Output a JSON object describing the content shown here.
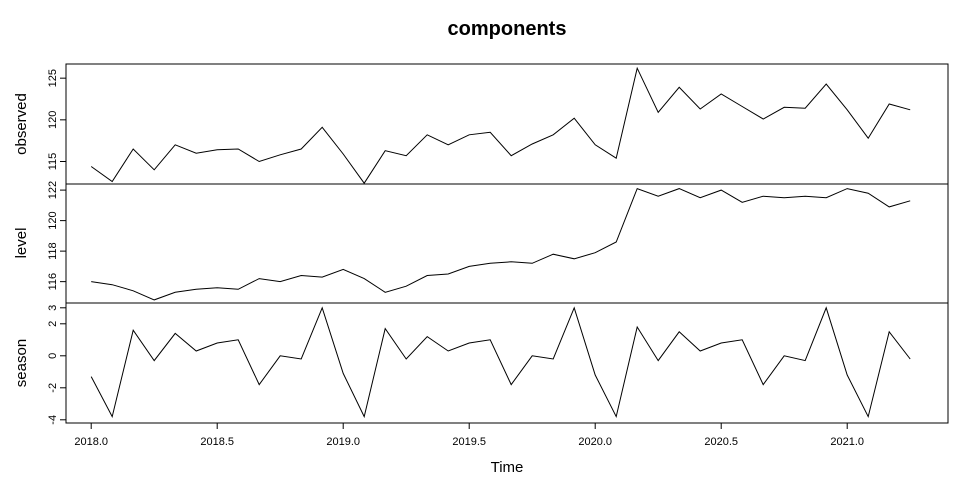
{
  "chart_data": {
    "type": "line",
    "title": "components",
    "xlabel": "Time",
    "x_ticks": [
      "2018.0",
      "2018.5",
      "2019.0",
      "2019.5",
      "2020.0",
      "2020.5",
      "2021.0"
    ],
    "x": [
      2018.0,
      2018.0833,
      2018.1667,
      2018.25,
      2018.3333,
      2018.4167,
      2018.5,
      2018.5833,
      2018.6667,
      2018.75,
      2018.8333,
      2018.9167,
      2019.0,
      2019.0833,
      2019.1667,
      2019.25,
      2019.3333,
      2019.4167,
      2019.5,
      2019.5833,
      2019.6667,
      2019.75,
      2019.8333,
      2019.9167,
      2020.0,
      2020.0833,
      2020.1667,
      2020.25,
      2020.3333,
      2020.4167,
      2020.5,
      2020.5833,
      2020.6667,
      2020.75,
      2020.8333,
      2020.9167,
      2021.0,
      2021.0833,
      2021.1667,
      2021.25
    ],
    "xlim": [
      2017.9,
      2021.4
    ],
    "panels": [
      {
        "ylabel": "observed",
        "ylim": [
          112.3,
          126.7
        ],
        "y_ticks": [
          "115",
          "120",
          "125"
        ],
        "values": [
          114.4,
          112.6,
          116.5,
          114.0,
          117.0,
          116.0,
          116.4,
          116.5,
          115.0,
          115.8,
          116.5,
          119.1,
          115.9,
          112.4,
          116.3,
          115.7,
          118.2,
          117.0,
          118.2,
          118.5,
          115.7,
          117.1,
          118.2,
          120.2,
          117.0,
          115.4,
          126.2,
          120.9,
          123.9,
          121.3,
          123.1,
          121.6,
          120.1,
          121.5,
          121.4,
          124.3,
          121.2,
          117.8,
          121.9,
          121.2
        ]
      },
      {
        "ylabel": "level",
        "ylim": [
          114.6,
          122.4
        ],
        "y_ticks": [
          "116",
          "118",
          "120",
          "122"
        ],
        "values": [
          116.0,
          115.8,
          115.4,
          114.8,
          115.3,
          115.5,
          115.6,
          115.5,
          116.2,
          116.0,
          116.4,
          116.3,
          116.8,
          116.2,
          115.3,
          115.7,
          116.4,
          116.5,
          117.0,
          117.2,
          117.3,
          117.2,
          117.8,
          117.5,
          117.9,
          118.6,
          122.1,
          121.6,
          122.1,
          121.5,
          122.0,
          121.2,
          121.6,
          121.5,
          121.6,
          121.5,
          122.1,
          121.8,
          120.9,
          121.3
        ]
      },
      {
        "ylabel": "season",
        "ylim": [
          -4.2,
          3.3
        ],
        "y_ticks": [
          "-4",
          "-2",
          "0",
          "2",
          "3"
        ],
        "values": [
          -1.3,
          -3.8,
          1.6,
          -0.3,
          1.4,
          0.3,
          0.8,
          1.0,
          -1.8,
          0.0,
          -0.2,
          3.0,
          -1.1,
          -3.8,
          1.7,
          -0.2,
          1.2,
          0.3,
          0.8,
          1.0,
          -1.8,
          0.0,
          -0.2,
          3.0,
          -1.2,
          -3.8,
          1.8,
          -0.3,
          1.5,
          0.3,
          0.8,
          1.0,
          -1.8,
          0.0,
          -0.3,
          3.0,
          -1.2,
          -3.8,
          1.5,
          -0.2
        ]
      }
    ],
    "grid": false,
    "legend": "none"
  }
}
